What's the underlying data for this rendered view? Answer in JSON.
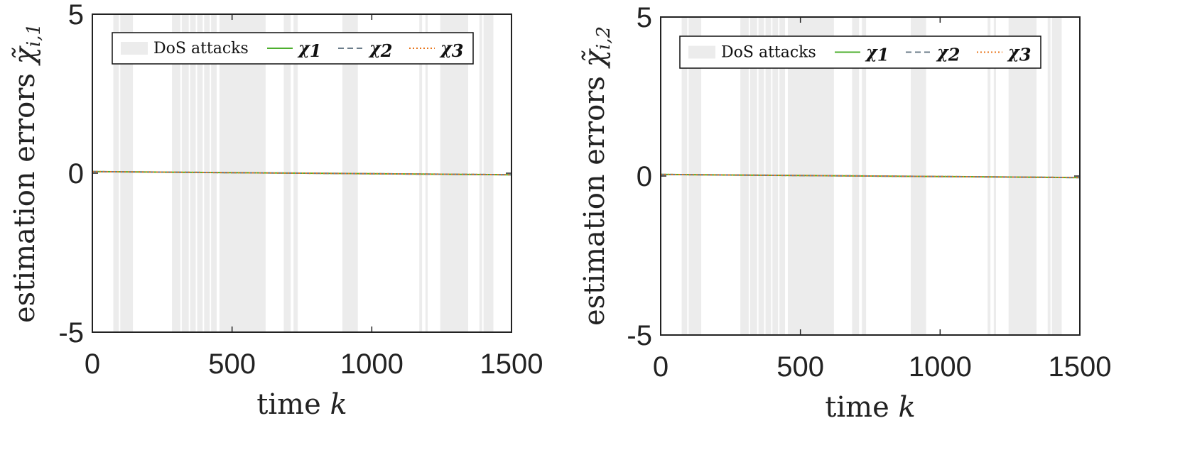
{
  "chart_data": [
    {
      "type": "line",
      "xlabel": "time",
      "xlabel_var": "k",
      "ylabel": "estimation errors",
      "ylabel_sym": "χ̃",
      "ylabel_sub": "i,1",
      "xlim": [
        0,
        1500
      ],
      "ylim": [
        -5,
        5
      ],
      "xticks": [
        "0",
        "500",
        "1000",
        "1500"
      ],
      "yticks": [
        "-5",
        "0",
        "5"
      ],
      "grid": false,
      "legend_position": "top",
      "dos_label": "DoS attacks",
      "dos_intervals": [
        [
          75,
          95
        ],
        [
          100,
          145
        ],
        [
          285,
          315
        ],
        [
          320,
          345
        ],
        [
          350,
          370
        ],
        [
          375,
          395
        ],
        [
          400,
          420
        ],
        [
          425,
          445
        ],
        [
          455,
          620
        ],
        [
          685,
          710
        ],
        [
          720,
          735
        ],
        [
          895,
          950
        ],
        [
          1170,
          1180
        ],
        [
          1192,
          1200
        ],
        [
          1245,
          1345
        ],
        [
          1385,
          1395
        ],
        [
          1400,
          1435
        ]
      ],
      "series": [
        {
          "name": "χ1",
          "sym": "χ",
          "sub": "1",
          "color": "#4daf2e",
          "dash": "solid",
          "x": [
            0,
            1500
          ],
          "y": [
            0.05,
            -0.05
          ]
        },
        {
          "name": "χ2",
          "sym": "χ",
          "sub": "2",
          "color": "#6b7d8a",
          "dash": "dashed",
          "x": [
            0,
            1500
          ],
          "y": [
            0.05,
            -0.05
          ]
        },
        {
          "name": "χ3",
          "sym": "χ",
          "sub": "3",
          "color": "#e8761c",
          "dash": "dotted",
          "x": [
            0,
            1500
          ],
          "y": [
            0.05,
            -0.05
          ]
        }
      ]
    },
    {
      "type": "line",
      "xlabel": "time",
      "xlabel_var": "k",
      "ylabel": "estimation errors",
      "ylabel_sym": "χ̃",
      "ylabel_sub": "i,2",
      "xlim": [
        0,
        1500
      ],
      "ylim": [
        -5,
        5
      ],
      "xticks": [
        "0",
        "500",
        "1000",
        "1500"
      ],
      "yticks": [
        "-5",
        "0",
        "5"
      ],
      "grid": false,
      "legend_position": "top",
      "dos_label": "DoS attacks",
      "dos_intervals": [
        [
          75,
          95
        ],
        [
          100,
          145
        ],
        [
          285,
          315
        ],
        [
          320,
          345
        ],
        [
          350,
          370
        ],
        [
          375,
          395
        ],
        [
          400,
          420
        ],
        [
          425,
          445
        ],
        [
          455,
          620
        ],
        [
          685,
          710
        ],
        [
          720,
          735
        ],
        [
          895,
          950
        ],
        [
          1170,
          1180
        ],
        [
          1192,
          1200
        ],
        [
          1245,
          1345
        ],
        [
          1385,
          1395
        ],
        [
          1400,
          1435
        ]
      ],
      "series": [
        {
          "name": "χ1",
          "sym": "χ",
          "sub": "1",
          "color": "#4daf2e",
          "dash": "solid",
          "x": [
            0,
            1500
          ],
          "y": [
            0.05,
            -0.05
          ]
        },
        {
          "name": "χ2",
          "sym": "χ",
          "sub": "2",
          "color": "#6b7d8a",
          "dash": "dashed",
          "x": [
            0,
            1500
          ],
          "y": [
            0.05,
            -0.05
          ]
        },
        {
          "name": "χ3",
          "sym": "χ",
          "sub": "3",
          "color": "#e8761c",
          "dash": "dotted",
          "x": [
            0,
            1500
          ],
          "y": [
            0.05,
            -0.05
          ]
        }
      ]
    }
  ]
}
